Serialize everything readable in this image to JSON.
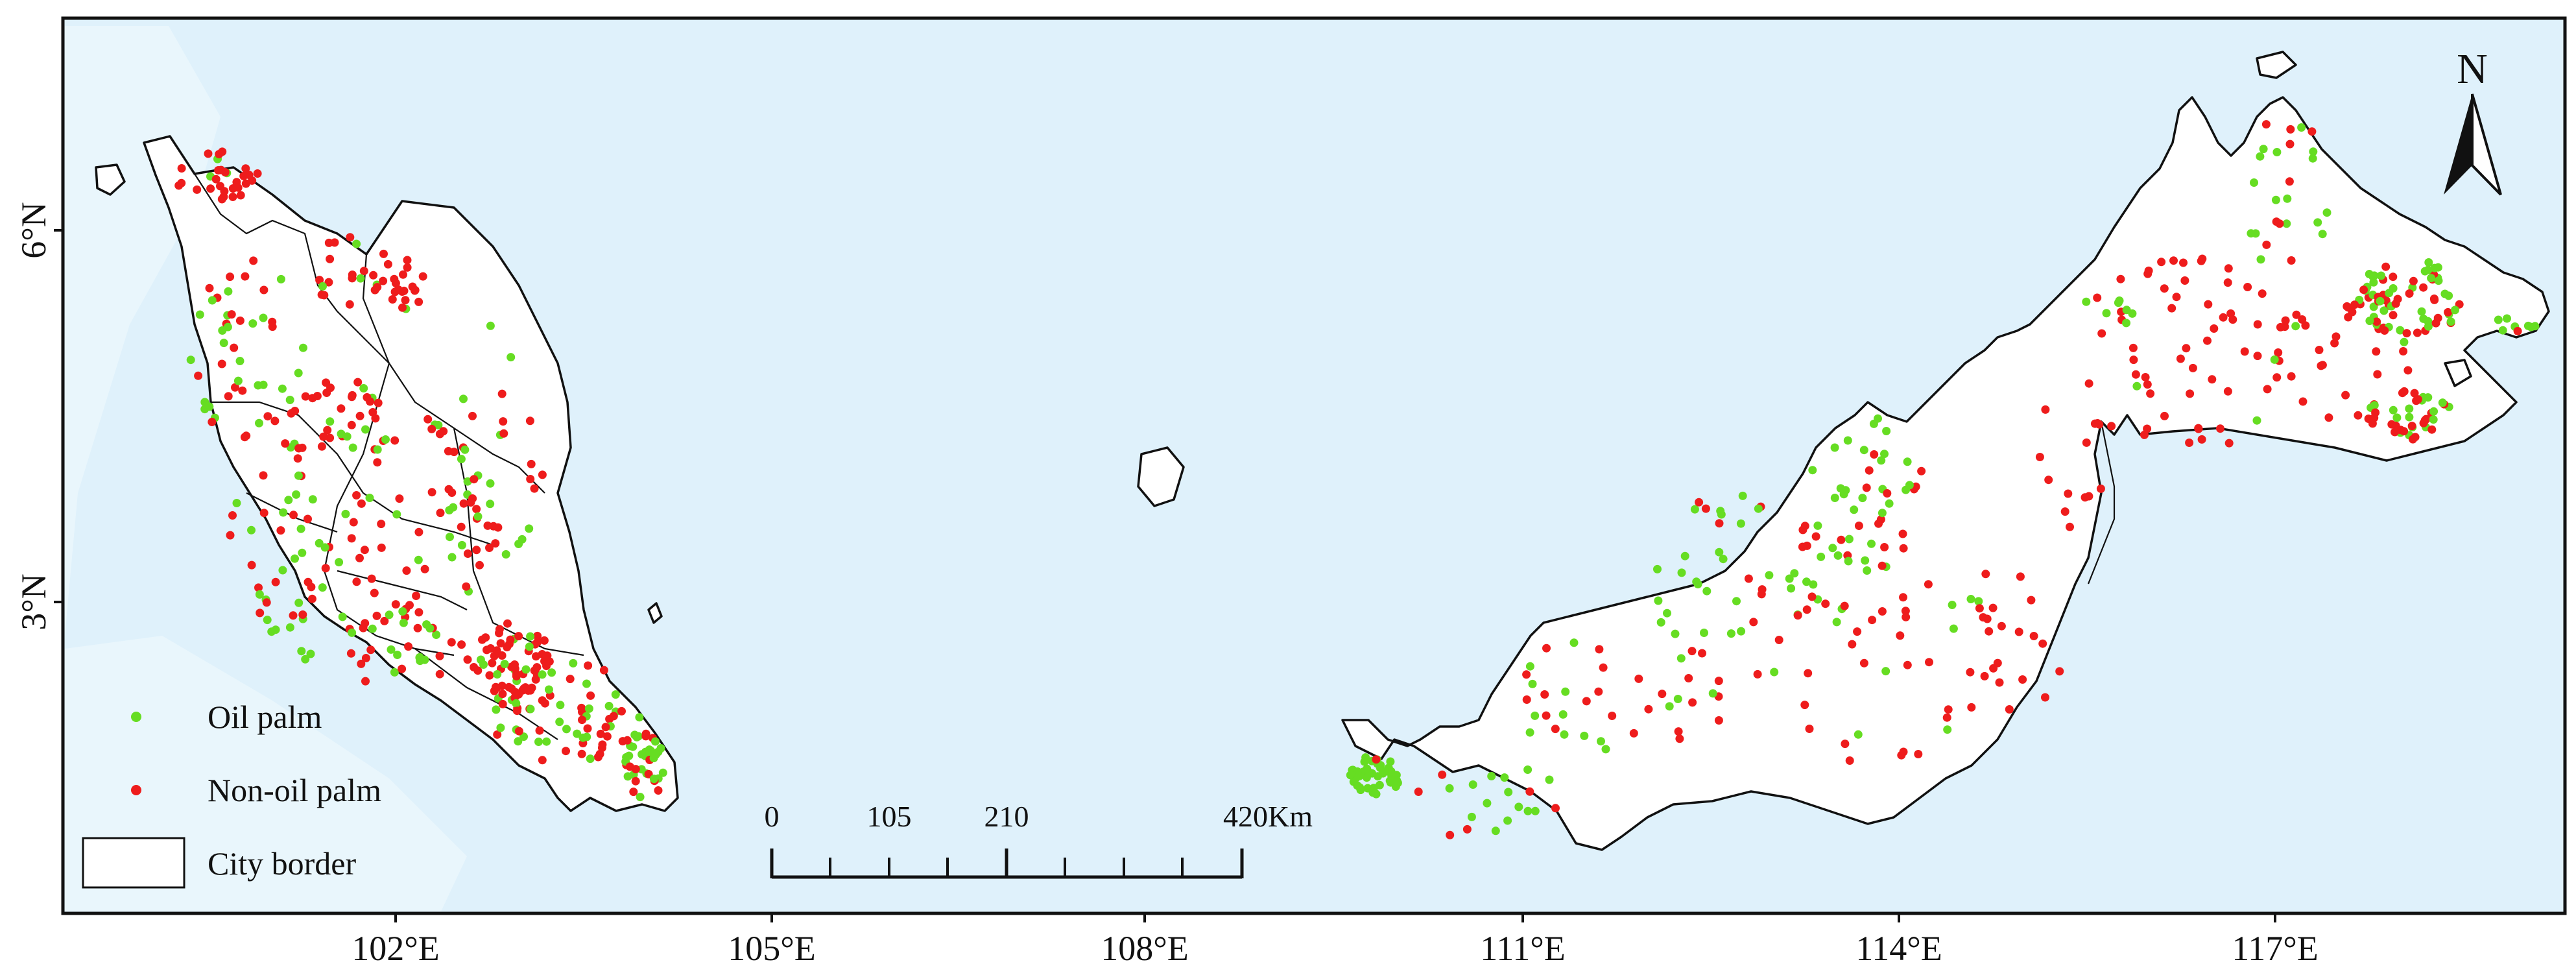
{
  "map": {
    "lon_ticks": [
      "102°E",
      "105°E",
      "108°E",
      "111°E",
      "114°E",
      "117°E"
    ],
    "lat_ticks": [
      "6°N",
      "3°N"
    ],
    "north_arrow": {
      "label": "N",
      "icon": "north-arrow-icon"
    },
    "scale_bar": {
      "labels": [
        "0",
        "105",
        "210",
        "420Km"
      ]
    },
    "legend": {
      "items": [
        {
          "label": "Oil palm",
          "color": "#66dd22",
          "icon": "dot-icon"
        },
        {
          "label": "Non-oil palm",
          "color": "#ee1c1c",
          "icon": "dot-icon"
        },
        {
          "label": "City border",
          "icon": "rect-outline-icon"
        }
      ]
    },
    "colors": {
      "sea": "#dff1fb",
      "land": "#ffffff",
      "oil_palm": "#66dd22",
      "non_oil_palm": "#ee1c1c"
    },
    "seed": 20
  }
}
